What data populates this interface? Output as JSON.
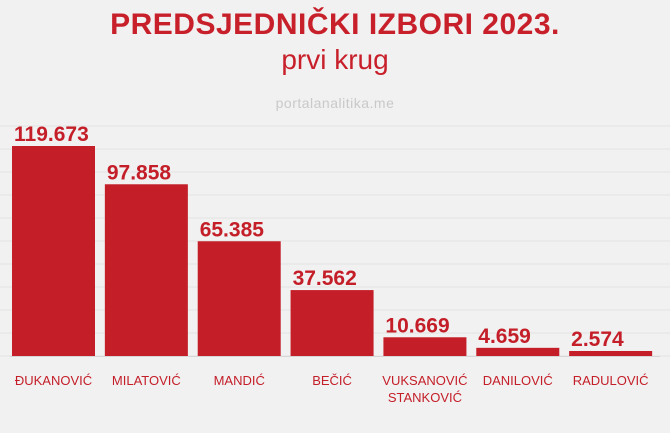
{
  "header": {
    "title": "PREDSJEDNIČKI IZBORI 2023.",
    "subtitle": "prvi krug",
    "watermark": "portalanalitika.me"
  },
  "chart_data": {
    "type": "bar",
    "categories": [
      "ĐUKANOVIĆ",
      "MILATOVIĆ",
      "MANDIĆ",
      "BEČIĆ",
      "VUKSANOVIĆ STANKOVIĆ",
      "DANILOVIĆ",
      "RADULOVIĆ"
    ],
    "category_lines": [
      [
        "ĐUKANOVIĆ"
      ],
      [
        "MILATOVIĆ"
      ],
      [
        "MANDIĆ"
      ],
      [
        "BEČIĆ"
      ],
      [
        "VUKSANOVIĆ",
        "STANKOVIĆ"
      ],
      [
        "DANILOVIĆ"
      ],
      [
        "RADULOVIĆ"
      ]
    ],
    "values": [
      119673,
      97858,
      65385,
      37562,
      10669,
      4659,
      2574
    ],
    "value_labels": [
      "119.673",
      "97.858",
      "65.385",
      "37.562",
      "10.669",
      "4.659",
      "2.574"
    ],
    "title": "PREDSJEDNIČKI IZBORI 2023.",
    "subtitle": "prvi krug",
    "xlabel": "",
    "ylabel": "",
    "ylim": [
      0,
      119673
    ],
    "grid": true,
    "bar_color": "#c41e28"
  }
}
